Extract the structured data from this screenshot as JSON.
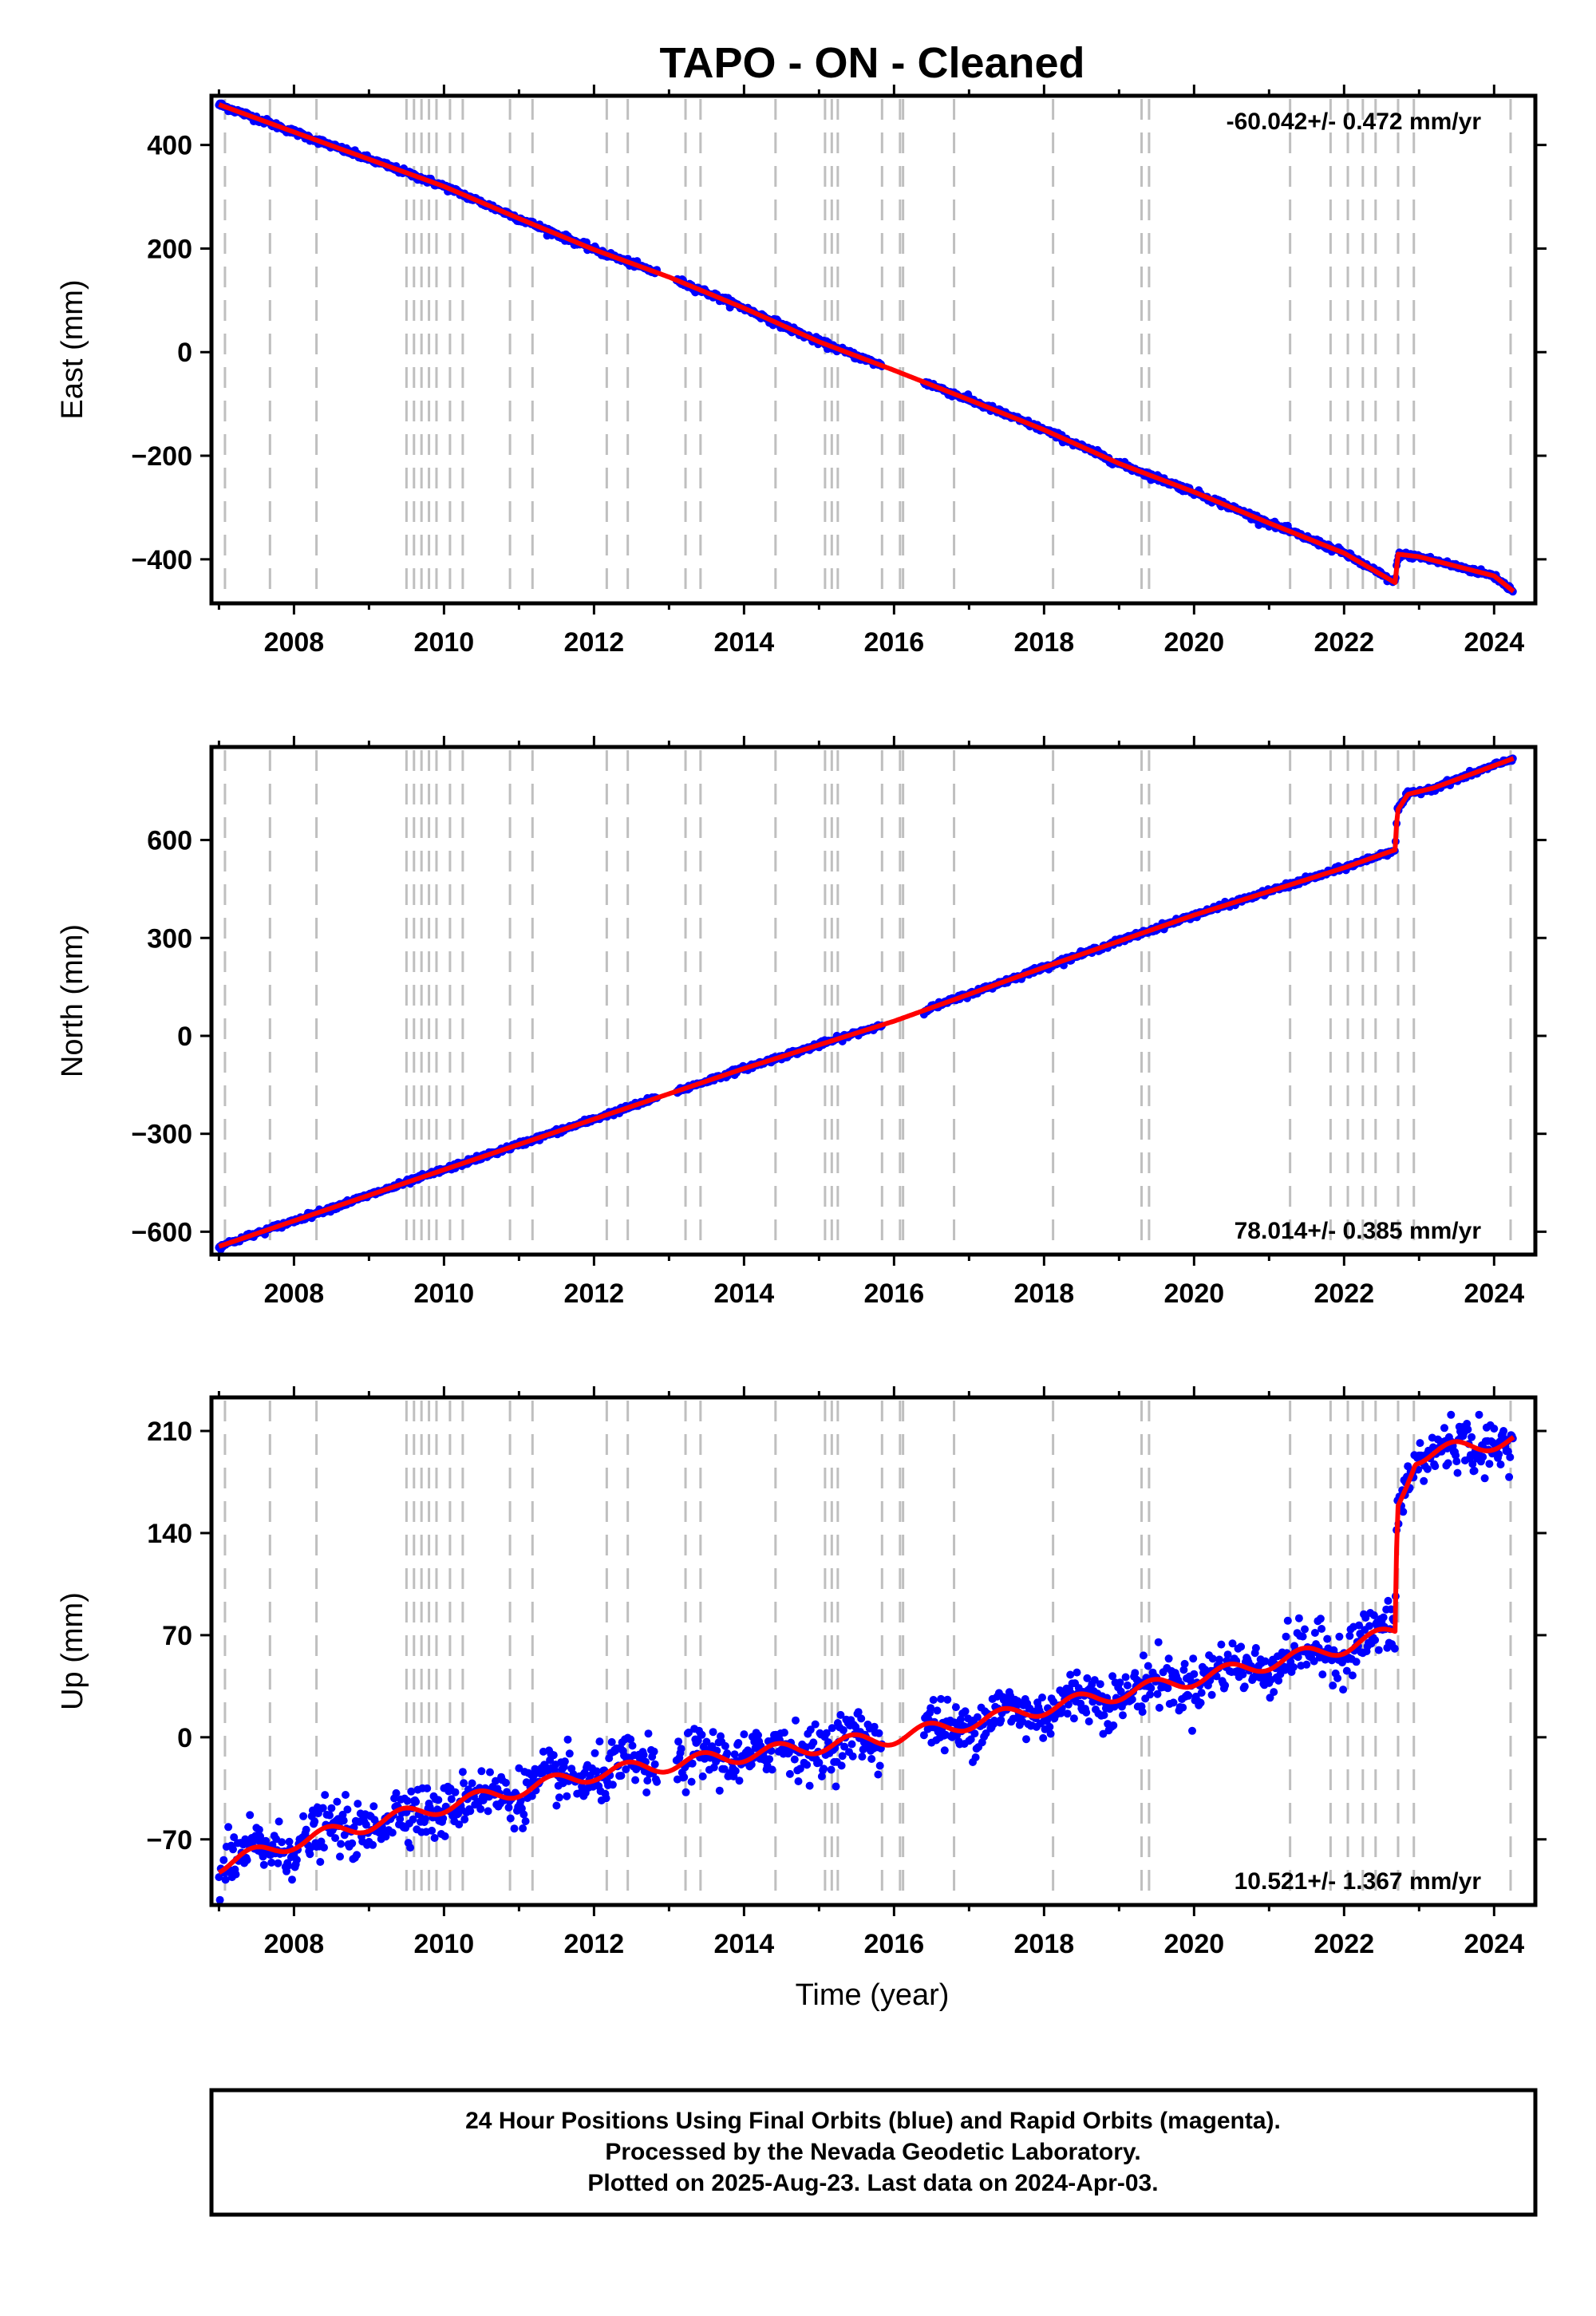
{
  "title": "TAPO  - ON - Cleaned",
  "xlabel": "Time (year)",
  "footer": {
    "line1": "24 Hour Positions Using Final Orbits (blue) and Rapid Orbits (magenta).",
    "line2": "Processed by the Nevada Geodetic Laboratory.",
    "line3": "Plotted on 2025-Aug-23. Last data on 2024-Apr-03."
  },
  "colors": {
    "data_points": "#0000ff",
    "model_line": "#ff0000",
    "event_lines": "#bfbfbf",
    "frame": "#000000"
  },
  "chart_data": [
    {
      "type": "scatter",
      "component": "east",
      "ylabel": "East (mm)",
      "rate": "-60.042+/- 0.472 mm/yr",
      "rate_position": "top-right",
      "xlim": [
        2006.9,
        2024.55
      ],
      "ylim": [
        -485,
        495
      ],
      "xticks": [
        2008,
        2010,
        2012,
        2014,
        2016,
        2018,
        2020,
        2022,
        2024
      ],
      "xtick_labels": [
        "2008",
        "2010",
        "2012",
        "2014",
        "2016",
        "2018",
        "2020",
        "2022",
        "2024"
      ],
      "yticks": [
        -400,
        -200,
        0,
        200,
        400
      ],
      "ytick_labels": [
        "−400",
        "−200",
        "0",
        "200",
        "400"
      ],
      "event_lines": [
        2007.08,
        2007.68,
        2008.3,
        2009.5,
        2009.6,
        2009.7,
        2009.8,
        2009.9,
        2010.08,
        2010.25,
        2010.88,
        2011.18,
        2012.17,
        2012.45,
        2013.22,
        2013.42,
        2014.42,
        2015.08,
        2015.17,
        2015.25,
        2015.84,
        2016.08,
        2016.12,
        2016.8,
        2018.12,
        2019.3,
        2019.4,
        2021.28,
        2021.82,
        2022.05,
        2022.25,
        2022.42,
        2022.72,
        2022.93,
        2024.22
      ],
      "gaps": [
        [
          2012.85,
          2013.1
        ],
        [
          2015.85,
          2016.4
        ]
      ],
      "model": [
        [
          2007.0,
          478
        ],
        [
          2008.0,
          425
        ],
        [
          2010.0,
          320
        ],
        [
          2011.0,
          258
        ],
        [
          2012.0,
          198
        ],
        [
          2013.0,
          145
        ],
        [
          2014.0,
          85
        ],
        [
          2015.0,
          20
        ],
        [
          2016.0,
          -35
        ],
        [
          2017.0,
          -92
        ],
        [
          2018.0,
          -150
        ],
        [
          2019.0,
          -215
        ],
        [
          2020.0,
          -270
        ],
        [
          2021.0,
          -330
        ],
        [
          2022.0,
          -388
        ],
        [
          2022.68,
          -445
        ],
        [
          2022.72,
          -390
        ],
        [
          2023.0,
          -395
        ],
        [
          2024.0,
          -432
        ],
        [
          2024.26,
          -462
        ]
      ],
      "noise_mm": 3
    },
    {
      "type": "scatter",
      "component": "north",
      "ylabel": "North (mm)",
      "rate": "78.014+/- 0.385 mm/yr",
      "rate_position": "bottom-right",
      "xlim": [
        2006.9,
        2024.55
      ],
      "ylim": [
        -670,
        885
      ],
      "xticks": [
        2008,
        2010,
        2012,
        2014,
        2016,
        2018,
        2020,
        2022,
        2024
      ],
      "xtick_labels": [
        "2008",
        "2010",
        "2012",
        "2014",
        "2016",
        "2018",
        "2020",
        "2022",
        "2024"
      ],
      "yticks": [
        -600,
        -300,
        0,
        300,
        600
      ],
      "ytick_labels": [
        "−600",
        "−300",
        "0",
        "300",
        "600"
      ],
      "event_lines": [
        2007.08,
        2007.68,
        2008.3,
        2009.5,
        2009.6,
        2009.7,
        2009.8,
        2009.9,
        2010.08,
        2010.25,
        2010.88,
        2011.18,
        2012.17,
        2012.45,
        2013.22,
        2013.42,
        2014.42,
        2015.08,
        2015.17,
        2015.25,
        2015.84,
        2016.08,
        2016.12,
        2016.8,
        2018.12,
        2019.3,
        2019.4,
        2021.28,
        2021.82,
        2022.05,
        2022.25,
        2022.42,
        2022.72,
        2022.93,
        2024.22
      ],
      "gaps": [
        [
          2012.85,
          2013.1
        ],
        [
          2015.85,
          2016.4
        ]
      ],
      "model": [
        [
          2007.0,
          -645
        ],
        [
          2010.0,
          -410
        ],
        [
          2012.0,
          -255
        ],
        [
          2014.0,
          -100
        ],
        [
          2016.0,
          45
        ],
        [
          2018.0,
          210
        ],
        [
          2020.0,
          370
        ],
        [
          2022.0,
          515
        ],
        [
          2022.68,
          570
        ],
        [
          2022.71,
          690
        ],
        [
          2022.85,
          740
        ],
        [
          2023.2,
          760
        ],
        [
          2024.26,
          850
        ]
      ],
      "noise_mm": 4
    },
    {
      "type": "scatter",
      "component": "up",
      "ylabel": "Up (mm)",
      "rate": "10.521+/- 1.367 mm/yr",
      "rate_position": "bottom-right",
      "xlim": [
        2006.9,
        2024.55
      ],
      "ylim": [
        -115,
        233
      ],
      "xticks": [
        2008,
        2010,
        2012,
        2014,
        2016,
        2018,
        2020,
        2022,
        2024
      ],
      "xtick_labels": [
        "2008",
        "2010",
        "2012",
        "2014",
        "2016",
        "2018",
        "2020",
        "2022",
        "2024"
      ],
      "yticks": [
        -70,
        0,
        70,
        140,
        210
      ],
      "ytick_labels": [
        "−70",
        "0",
        "70",
        "140",
        "210"
      ],
      "event_lines": [
        2007.08,
        2007.68,
        2008.3,
        2009.5,
        2009.6,
        2009.7,
        2009.8,
        2009.9,
        2010.08,
        2010.25,
        2010.88,
        2011.18,
        2012.17,
        2012.45,
        2013.22,
        2013.42,
        2014.42,
        2015.08,
        2015.17,
        2015.25,
        2015.84,
        2016.08,
        2016.12,
        2016.8,
        2018.12,
        2019.3,
        2019.4,
        2021.28,
        2021.82,
        2022.05,
        2022.25,
        2022.42,
        2022.72,
        2022.93,
        2024.22
      ],
      "gaps": [
        [
          2012.85,
          2013.1
        ],
        [
          2015.85,
          2016.4
        ]
      ],
      "model": [
        [
          2007.0,
          -88
        ],
        [
          2008.0,
          -72
        ],
        [
          2010.0,
          -47
        ],
        [
          2012.0,
          -25
        ],
        [
          2014.0,
          -12
        ],
        [
          2016.0,
          0
        ],
        [
          2018.0,
          20
        ],
        [
          2020.0,
          40
        ],
        [
          2022.0,
          62
        ],
        [
          2022.68,
          72
        ],
        [
          2022.71,
          158
        ],
        [
          2022.95,
          192
        ],
        [
          2023.5,
          198
        ],
        [
          2024.26,
          204
        ]
      ],
      "seasonal_mm": 5,
      "noise_mm": 9
    }
  ]
}
